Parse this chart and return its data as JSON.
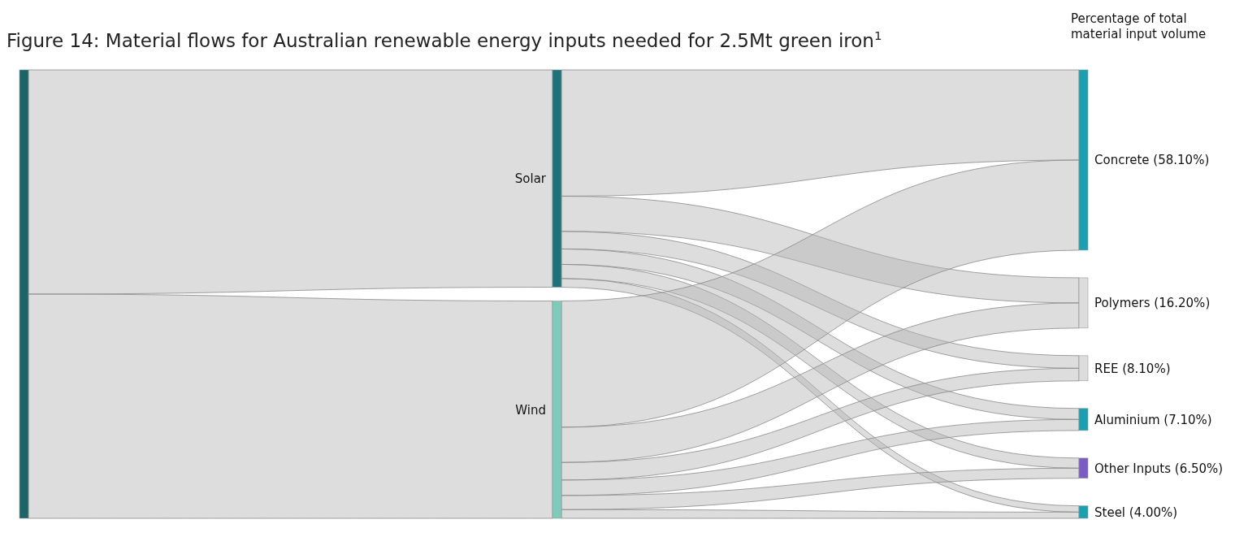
{
  "chart_data": {
    "type": "other",
    "title": "Figure 14: Material flows for Australian renewable energy inputs needed for 2.5Mt green iron$^{1}$",
    "annotations": [
      "Percentage of total material input volume"
    ],
    "categories": [
      null,
      "Solar",
      "Wind",
      "Concrete",
      "Polymers",
      "REE",
      "Aluminium",
      "Other Inputs",
      "Steel"
    ],
    "values": [
      null,
      null,
      null,
      58.1,
      16.2,
      8.1,
      7.1,
      6.5,
      4.0
    ],
    "value_labels": [
      null,
      null,
      null,
      "(58.10%)",
      "(16.20%)",
      "(8.10%)",
      "(7.10%)",
      "(6.50%)",
      "(4.00%)"
    ],
    "colors": [
      "#1b6468",
      "#1c747a",
      "#7ecabb",
      "#1ba0b2",
      "#dcdcdc",
      "#dcdcdc",
      "#1ba0b2",
      "#7b5cc6",
      "#1ba0b2"
    ]
  }
}
